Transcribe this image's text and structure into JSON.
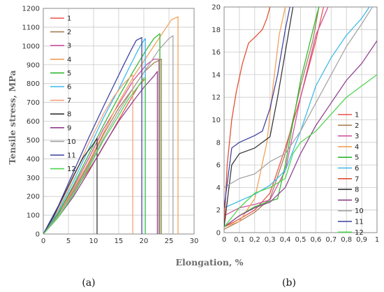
{
  "figure": {
    "y_label": "Tensile stress, MPa",
    "x_label": "Elongation, %",
    "panel_labels": [
      "(a)",
      "(b)"
    ]
  },
  "chart_data": [
    {
      "type": "line",
      "panel": "(a)",
      "xlim": [
        0,
        30
      ],
      "ylim": [
        0,
        1200
      ],
      "xticks": [
        0,
        5,
        10,
        15,
        20,
        25,
        30
      ],
      "yticks": [
        0,
        100,
        200,
        300,
        400,
        500,
        600,
        700,
        800,
        900,
        1000,
        1100,
        1200
      ],
      "grid": true,
      "legend": "top-left",
      "series": [
        {
          "name": "1",
          "color": "#e8514a",
          "points": [
            [
              0,
              0
            ],
            [
              2,
              70
            ],
            [
              5,
              180
            ],
            [
              8,
              300
            ],
            [
              11,
              420
            ],
            [
              14,
              560
            ],
            [
              17,
              700
            ],
            [
              19,
              790
            ],
            [
              20,
              820
            ],
            [
              20.3,
              820
            ],
            [
              20.3,
              0
            ]
          ]
        },
        {
          "name": "2",
          "color": "#a67c52",
          "points": [
            [
              0,
              0
            ],
            [
              3,
              100
            ],
            [
              6,
              230
            ],
            [
              9,
              370
            ],
            [
              12,
              530
            ],
            [
              15,
              670
            ],
            [
              18,
              780
            ],
            [
              20,
              860
            ],
            [
              22,
              910
            ],
            [
              23.5,
              930
            ],
            [
              23.5,
              0
            ]
          ]
        },
        {
          "name": "3",
          "color": "#cf4fa0",
          "points": [
            [
              0,
              0
            ],
            [
              3,
              110
            ],
            [
              6,
              250
            ],
            [
              9,
              400
            ],
            [
              12,
              560
            ],
            [
              15,
              690
            ],
            [
              18,
              820
            ],
            [
              20.5,
              900
            ],
            [
              22,
              930
            ],
            [
              23,
              930
            ],
            [
              23,
              0
            ]
          ]
        },
        {
          "name": "4",
          "color": "#f0a055",
          "points": [
            [
              0,
              0
            ],
            [
              3,
              100
            ],
            [
              6,
              240
            ],
            [
              9,
              380
            ],
            [
              12,
              540
            ],
            [
              15,
              700
            ],
            [
              18,
              840
            ],
            [
              21,
              960
            ],
            [
              24,
              1080
            ],
            [
              25.5,
              1140
            ],
            [
              26.8,
              1155
            ],
            [
              26.8,
              0
            ]
          ]
        },
        {
          "name": "5",
          "color": "#2eb82e",
          "points": [
            [
              0,
              0
            ],
            [
              3,
              110
            ],
            [
              6,
              260
            ],
            [
              9,
              420
            ],
            [
              12,
              580
            ],
            [
              15,
              730
            ],
            [
              18,
              870
            ],
            [
              20.5,
              980
            ],
            [
              22,
              1040
            ],
            [
              23.2,
              1065
            ],
            [
              23.2,
              0
            ]
          ]
        },
        {
          "name": "6",
          "color": "#3ab8e8",
          "points": [
            [
              0,
              0
            ],
            [
              3,
              120
            ],
            [
              6,
              280
            ],
            [
              9,
              450
            ],
            [
              12,
              620
            ],
            [
              15,
              770
            ],
            [
              17,
              880
            ],
            [
              18.5,
              960
            ],
            [
              19.5,
              1010
            ],
            [
              20.3,
              1040
            ],
            [
              20.3,
              0
            ]
          ]
        },
        {
          "name": "7",
          "color": "#f4a07a",
          "points": [
            [
              0,
              0
            ],
            [
              3,
              130
            ],
            [
              6,
              300
            ],
            [
              9,
              480
            ],
            [
              12,
              640
            ],
            [
              14,
              730
            ],
            [
              16,
              800
            ],
            [
              17.5,
              840
            ],
            [
              17.8,
              845
            ],
            [
              17.8,
              0
            ]
          ]
        },
        {
          "name": "8",
          "color": "#333333",
          "points": [
            [
              0,
              0
            ],
            [
              2,
              90
            ],
            [
              4,
              200
            ],
            [
              6,
              310
            ],
            [
              8,
              410
            ],
            [
              10,
              480
            ],
            [
              10.7,
              510
            ],
            [
              10.7,
              0
            ]
          ]
        },
        {
          "name": "9",
          "color": "#8e3e8e",
          "points": [
            [
              0,
              0
            ],
            [
              3,
              90
            ],
            [
              6,
              200
            ],
            [
              9,
              330
            ],
            [
              12,
              470
            ],
            [
              15,
              600
            ],
            [
              18,
              710
            ],
            [
              20,
              780
            ],
            [
              22,
              840
            ],
            [
              22.7,
              865
            ],
            [
              22.7,
              0
            ]
          ]
        },
        {
          "name": "10",
          "color": "#a3a3a3",
          "points": [
            [
              0,
              0
            ],
            [
              3,
              100
            ],
            [
              6,
              220
            ],
            [
              9,
              360
            ],
            [
              12,
              510
            ],
            [
              15,
              650
            ],
            [
              18,
              780
            ],
            [
              21,
              900
            ],
            [
              23,
              980
            ],
            [
              25,
              1040
            ],
            [
              25.8,
              1055
            ],
            [
              25.8,
              0
            ]
          ]
        },
        {
          "name": "11",
          "color": "#3c3fa0",
          "points": [
            [
              0,
              0
            ],
            [
              3,
              150
            ],
            [
              6,
              330
            ],
            [
              9,
              510
            ],
            [
              12,
              680
            ],
            [
              14,
              790
            ],
            [
              16,
              900
            ],
            [
              17.5,
              980
            ],
            [
              18.5,
              1030
            ],
            [
              19.6,
              1045
            ],
            [
              19.6,
              0
            ]
          ]
        },
        {
          "name": "12",
          "color": "#4cd44c",
          "points": [
            [
              0,
              0
            ],
            [
              3,
              90
            ],
            [
              6,
              210
            ],
            [
              9,
              350
            ],
            [
              12,
              500
            ],
            [
              15,
              630
            ],
            [
              17,
              720
            ],
            [
              19,
              790
            ],
            [
              20,
              830
            ],
            [
              20.3,
              830
            ],
            [
              20.3,
              0
            ]
          ]
        }
      ]
    },
    {
      "type": "line",
      "panel": "(b)",
      "xlim": [
        0,
        1
      ],
      "ylim": [
        0,
        20
      ],
      "xticks": [
        0,
        0.1,
        0.2,
        0.3,
        0.4,
        0.5,
        0.6,
        0.7,
        0.8,
        0.9,
        1
      ],
      "xtick_labels": [
        "0",
        "0,1",
        "0,2",
        "0,3",
        "0,4",
        "0,5",
        "0,6",
        "0,7",
        "0,8",
        "0,9",
        "1"
      ],
      "yticks": [
        0,
        2,
        4,
        6,
        8,
        10,
        12,
        14,
        16,
        18,
        20
      ],
      "grid": true,
      "legend": "bottom-right",
      "series": [
        {
          "name": "1",
          "color": "#e8514a",
          "points": [
            [
              0,
              0.5
            ],
            [
              0.1,
              1.2
            ],
            [
              0.2,
              2
            ],
            [
              0.3,
              3.5
            ],
            [
              0.4,
              7.5
            ],
            [
              0.5,
              12
            ],
            [
              0.6,
              17
            ],
            [
              0.65,
              20
            ]
          ]
        },
        {
          "name": "2",
          "color": "#a67c52",
          "points": [
            [
              0,
              0.3
            ],
            [
              0.1,
              1
            ],
            [
              0.2,
              1.8
            ],
            [
              0.3,
              3
            ],
            [
              0.4,
              7
            ],
            [
              0.5,
              13
            ],
            [
              0.58,
              17
            ],
            [
              0.62,
              20
            ]
          ]
        },
        {
          "name": "3",
          "color": "#cf4fa0",
          "points": [
            [
              0,
              1.5
            ],
            [
              0.1,
              2.2
            ],
            [
              0.2,
              2.5
            ],
            [
              0.3,
              2.9
            ],
            [
              0.4,
              5.5
            ],
            [
              0.5,
              12
            ],
            [
              0.6,
              17.5
            ],
            [
              0.68,
              20
            ]
          ]
        },
        {
          "name": "4",
          "color": "#f0a055",
          "points": [
            [
              0,
              0.5
            ],
            [
              0.1,
              1
            ],
            [
              0.2,
              3
            ],
            [
              0.28,
              8
            ],
            [
              0.32,
              13
            ],
            [
              0.36,
              17.5
            ],
            [
              0.4,
              20
            ]
          ]
        },
        {
          "name": "5",
          "color": "#2eb82e",
          "points": [
            [
              0,
              0.5
            ],
            [
              0.1,
              1.5
            ],
            [
              0.2,
              2.3
            ],
            [
              0.3,
              2.8
            ],
            [
              0.35,
              3
            ],
            [
              0.4,
              6
            ],
            [
              0.5,
              13.5
            ],
            [
              0.6,
              19
            ],
            [
              0.62,
              20
            ]
          ]
        },
        {
          "name": "6",
          "color": "#3ab8e8",
          "points": [
            [
              0,
              2.2
            ],
            [
              0.1,
              2.8
            ],
            [
              0.2,
              3.4
            ],
            [
              0.3,
              4.2
            ],
            [
              0.4,
              5.5
            ],
            [
              0.5,
              9
            ],
            [
              0.6,
              13
            ],
            [
              0.7,
              15.5
            ],
            [
              0.8,
              17.5
            ],
            [
              0.9,
              19
            ],
            [
              0.95,
              20
            ]
          ]
        },
        {
          "name": "7",
          "color": "#e04c2c",
          "points": [
            [
              0,
              0.5
            ],
            [
              0.02,
              6
            ],
            [
              0.05,
              10
            ],
            [
              0.08,
              12.5
            ],
            [
              0.12,
              15
            ],
            [
              0.16,
              16.8
            ],
            [
              0.2,
              17.3
            ],
            [
              0.25,
              18
            ],
            [
              0.28,
              19
            ],
            [
              0.3,
              20
            ]
          ]
        },
        {
          "name": "8",
          "color": "#333333",
          "points": [
            [
              0,
              0.5
            ],
            [
              0.05,
              6
            ],
            [
              0.1,
              7
            ],
            [
              0.2,
              7.5
            ],
            [
              0.25,
              8
            ],
            [
              0.3,
              8.5
            ],
            [
              0.35,
              12
            ],
            [
              0.4,
              16
            ],
            [
              0.45,
              20
            ]
          ]
        },
        {
          "name": "9",
          "color": "#8e3e8e",
          "points": [
            [
              0,
              0.5
            ],
            [
              0.1,
              1.5
            ],
            [
              0.2,
              2.2
            ],
            [
              0.3,
              2.7
            ],
            [
              0.4,
              4
            ],
            [
              0.5,
              7
            ],
            [
              0.6,
              9.5
            ],
            [
              0.7,
              11.5
            ],
            [
              0.8,
              13.5
            ],
            [
              0.9,
              15
            ],
            [
              1,
              17
            ]
          ]
        },
        {
          "name": "10",
          "color": "#a3a3a3",
          "points": [
            [
              0,
              4
            ],
            [
              0.1,
              4.8
            ],
            [
              0.2,
              5.2
            ],
            [
              0.3,
              6.3
            ],
            [
              0.4,
              7
            ],
            [
              0.5,
              9
            ],
            [
              0.6,
              11.5
            ],
            [
              0.7,
              14
            ],
            [
              0.8,
              16.5
            ],
            [
              0.9,
              18.5
            ],
            [
              0.97,
              20
            ]
          ]
        },
        {
          "name": "11",
          "color": "#3c3fa0",
          "points": [
            [
              0,
              2.2
            ],
            [
              0.05,
              7.5
            ],
            [
              0.1,
              8
            ],
            [
              0.2,
              8.6
            ],
            [
              0.25,
              9
            ],
            [
              0.3,
              11
            ],
            [
              0.35,
              14
            ],
            [
              0.4,
              18
            ],
            [
              0.43,
              20
            ]
          ]
        },
        {
          "name": "12",
          "color": "#4cd44c",
          "points": [
            [
              0,
              0.5
            ],
            [
              0.1,
              2.2
            ],
            [
              0.2,
              3.5
            ],
            [
              0.3,
              4
            ],
            [
              0.4,
              4.8
            ],
            [
              0.45,
              7
            ],
            [
              0.5,
              8
            ],
            [
              0.6,
              9
            ],
            [
              0.7,
              10.5
            ],
            [
              0.8,
              12
            ],
            [
              0.9,
              13
            ],
            [
              1,
              14
            ]
          ]
        }
      ]
    }
  ]
}
